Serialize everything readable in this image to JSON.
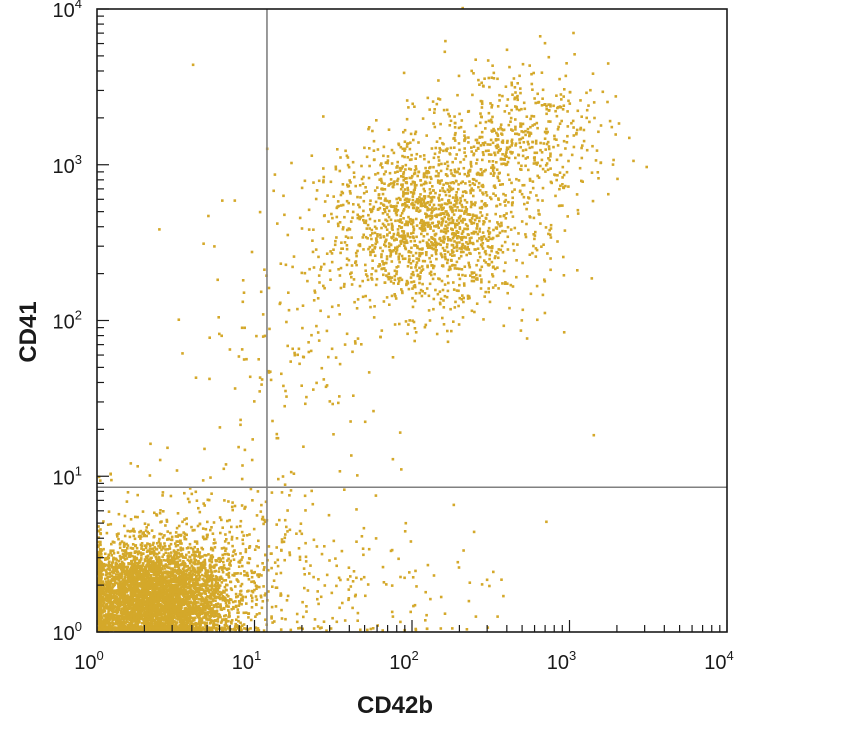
{
  "chart_data": {
    "type": "scatter",
    "title": "",
    "xlabel": "CD42b",
    "ylabel": "CD41",
    "x_scale": "log",
    "y_scale": "log",
    "xlim": [
      1,
      10000
    ],
    "ylim": [
      1,
      10000
    ],
    "x_tick_labels": [
      {
        "base": "10",
        "exp": "0"
      },
      {
        "base": "10",
        "exp": "1"
      },
      {
        "base": "10",
        "exp": "2"
      },
      {
        "base": "10",
        "exp": "3"
      },
      {
        "base": "10",
        "exp": "4"
      }
    ],
    "y_tick_labels": [
      {
        "base": "10",
        "exp": "0"
      },
      {
        "base": "10",
        "exp": "1"
      },
      {
        "base": "10",
        "exp": "2"
      },
      {
        "base": "10",
        "exp": "3"
      },
      {
        "base": "10",
        "exp": "4"
      }
    ],
    "gates": {
      "x": 12,
      "y": 8.5
    },
    "point_color": "#D4A82A",
    "gate_color": "#808080",
    "grid": false,
    "populations": [
      {
        "name": "",
        "cx": 2.2,
        "cy": 1.6,
        "sx": 0.26,
        "sy": 0.17,
        "count": 5200
      },
      {
        "name": "",
        "cx": 5.5,
        "cy": 3.5,
        "sx": 0.35,
        "sy": 0.28,
        "count": 350
      },
      {
        "name": "",
        "cx": 130,
        "cy": 420,
        "sx": 0.32,
        "sy": 0.28,
        "count": 1700
      },
      {
        "name": "",
        "cx": 480,
        "cy": 1600,
        "sx": 0.28,
        "sy": 0.22,
        "count": 450
      },
      {
        "name": "",
        "cx": 40,
        "cy": 1.8,
        "sx": 0.42,
        "sy": 0.22,
        "count": 150
      },
      {
        "name": "",
        "cx": 18,
        "cy": 80,
        "sx": 0.35,
        "sy": 0.4,
        "count": 160
      }
    ],
    "sample_points": [
      [
        4,
        4300
      ],
      [
        160,
        6100
      ],
      [
        8,
        21
      ],
      [
        1400,
        18
      ],
      [
        700,
        5
      ],
      [
        5,
        460
      ]
    ]
  }
}
